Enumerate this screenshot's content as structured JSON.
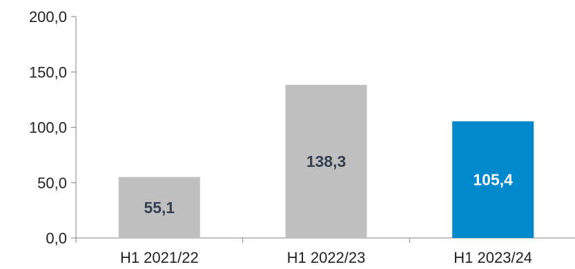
{
  "chart_data": {
    "type": "bar",
    "categories": [
      "H1 2021/22",
      "H1 2022/23",
      "H1 2023/24"
    ],
    "values": [
      55.1,
      138.3,
      105.4
    ],
    "data_labels": [
      "55,1",
      "138,3",
      "105,4"
    ],
    "bar_colors": [
      "#bfbfbf",
      "#bfbfbf",
      "#0088cc"
    ],
    "data_label_colors": [
      "#333f4f",
      "#333f4f",
      "#ffffff"
    ],
    "ylim": [
      0,
      200
    ],
    "yticks": [
      0,
      50,
      100,
      150,
      200
    ],
    "ytick_labels": [
      "0,0",
      "50,0",
      "100,0",
      "150,0",
      "200,0"
    ],
    "grid": false,
    "legend": "none",
    "title": "",
    "xlabel": "",
    "ylabel": ""
  }
}
